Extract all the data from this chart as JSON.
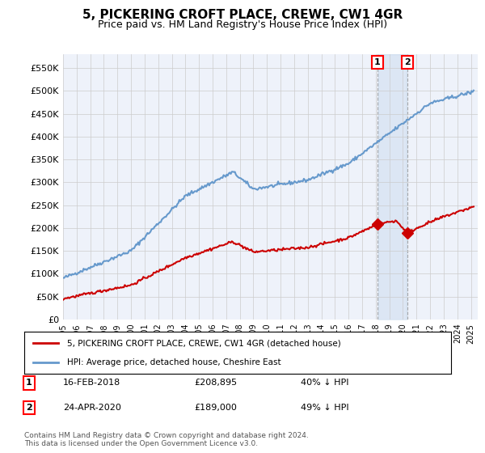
{
  "title": "5, PICKERING CROFT PLACE, CREWE, CW1 4GR",
  "subtitle": "Price paid vs. HM Land Registry's House Price Index (HPI)",
  "ylabel_ticks": [
    "£0",
    "£50K",
    "£100K",
    "£150K",
    "£200K",
    "£250K",
    "£300K",
    "£350K",
    "£400K",
    "£450K",
    "£500K",
    "£550K"
  ],
  "ytick_values": [
    0,
    50000,
    100000,
    150000,
    200000,
    250000,
    300000,
    350000,
    400000,
    450000,
    500000,
    550000
  ],
  "xlim_start": 1995.0,
  "xlim_end": 2025.5,
  "ylim": [
    0,
    580000
  ],
  "hpi_color": "#6699cc",
  "price_color": "#cc0000",
  "sale1_date": 2018.12,
  "sale1_price": 208895,
  "sale1_label": "1",
  "sale2_date": 2020.32,
  "sale2_price": 189000,
  "sale2_label": "2",
  "legend_line1": "5, PICKERING CROFT PLACE, CREWE, CW1 4GR (detached house)",
  "legend_line2": "HPI: Average price, detached house, Cheshire East",
  "annot1_label": "1",
  "annot1_date": "16-FEB-2018",
  "annot1_price": "£208,895",
  "annot1_hpi": "40% ↓ HPI",
  "annot2_label": "2",
  "annot2_date": "24-APR-2020",
  "annot2_price": "£189,000",
  "annot2_hpi": "49% ↓ HPI",
  "footer": "Contains HM Land Registry data © Crown copyright and database right 2024.\nThis data is licensed under the Open Government Licence v3.0.",
  "bg_color": "#ffffff",
  "plot_bg_color": "#eef2fa",
  "grid_color": "#cccccc"
}
